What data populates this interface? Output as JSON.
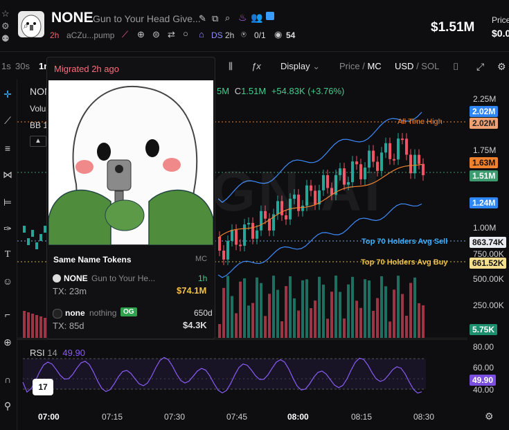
{
  "header": {
    "token_name": "NONE",
    "token_full_name": "Gun to Your Head Give...",
    "age": "2h",
    "contract": "aCZu...pump",
    "dev_label": "DS",
    "dev_age": "2h",
    "holders_ratio": "0/1",
    "views": "54",
    "market_cap": "$1.51M",
    "price_label": "Price",
    "price_value": "$0.0"
  },
  "toolbar": {
    "tf_1s": "1s",
    "tf_30s": "30s",
    "tf_1m": "1m",
    "display_label": "Display",
    "price_label": "Price",
    "mc_label": "MC",
    "usd_label": "USD",
    "sol_label": "SOL"
  },
  "chart_overlay": {
    "symbol": "NON",
    "volume_label": "Volu",
    "bb_label": "BB 1",
    "ohlc_tail": "5M",
    "close_label": "C",
    "close_value": "1.51M",
    "change": "+54.83K (+3.76%)",
    "all_time_high": "All Time High",
    "top70_sell": "Top 70 Holders Avg Sell",
    "top70_buy": "Top 70 Holders Avg Buy",
    "watermark": "GN.AI",
    "rsi_label": "RSI",
    "rsi_period": "14",
    "rsi_value": "49.90"
  },
  "y_axis": {
    "labels": [
      "2.25M",
      "1.75M",
      "1.00M",
      "750.00K",
      "500.00K",
      "250.00K",
      "80.00",
      "60.00",
      "40.00"
    ],
    "badge_upper_band": "2.02M",
    "badge_ath": "2.02M",
    "badge_middle": "1.63M",
    "badge_last": "1.51M",
    "badge_lower_band": "1.24M",
    "badge_sell": "863.74K",
    "badge_buy": "661.52K",
    "badge_volume": "5.75K",
    "badge_rsi": "49.90"
  },
  "x_axis": {
    "labels": [
      "07:00",
      "07:15",
      "07:30",
      "07:45",
      "08:00",
      "08:15",
      "08:30"
    ]
  },
  "popup": {
    "migrated": "Migrated 2h ago",
    "section_title": "Same Name Tokens",
    "section_col": "MC",
    "tokens": [
      {
        "name": "NONE",
        "desc": "Gun to Your He...",
        "age": "1h",
        "tx": "TX: 23m",
        "mc": "$74.1M"
      },
      {
        "name": "none",
        "desc": "nothing",
        "badge": "OG",
        "age": "650d",
        "tx": "TX: 85d",
        "mc": "$4.3K"
      }
    ]
  },
  "colors": {
    "up": "#26a69a",
    "down": "#ef5366",
    "band": "#3d8bfd",
    "ma": "#f0822d",
    "rsi": "#8a5cf6",
    "accent_red": "#ff5b6b"
  },
  "icons": [
    "pencil-icon",
    "copy-icon",
    "search-icon",
    "flame-icon",
    "people-icon",
    "chat-icon",
    "globe-icon",
    "list-icon",
    "search-icon",
    "dev-icon",
    "cashier-icon",
    "eye-icon",
    "camera-icon",
    "expand-icon",
    "gear-icon"
  ]
}
